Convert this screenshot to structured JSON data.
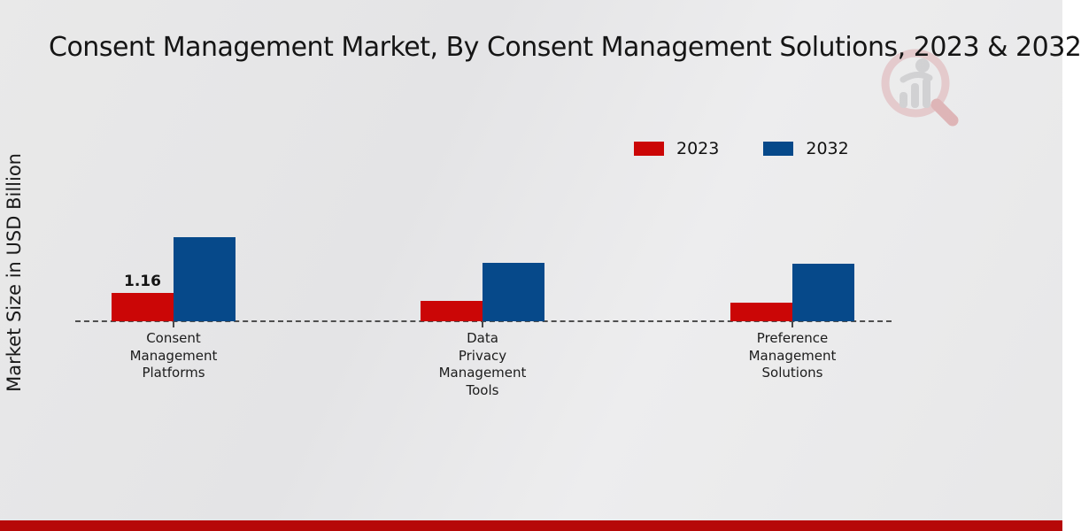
{
  "header": {
    "title": "Consent Management Market, By Consent Management Solutions, 2023 & 2032"
  },
  "watermark": {
    "icon": "magnifier-bar-chart-logo",
    "ring_color": "#dfb0b3",
    "bars_color": "#bdbdbf",
    "handle_color": "#d5898c"
  },
  "chart_data": {
    "type": "bar",
    "title": "Consent Management Market, By Consent Management Solutions, 2023 & 2032",
    "ylabel": "Market Size in USD Billion",
    "xlabel": "",
    "grid": false,
    "legend_position": "top-right",
    "baseline_style": "dashed",
    "ylim": [
      0,
      3.5
    ],
    "categories": [
      "Consent Management Platforms",
      "Data Privacy Management Tools",
      "Preference Management Solutions"
    ],
    "category_label_lines": [
      [
        "Consent",
        "Management",
        "Platforms"
      ],
      [
        "Data",
        "Privacy",
        "Management",
        "Tools"
      ],
      [
        "Preference",
        "Management",
        "Solutions"
      ]
    ],
    "series": [
      {
        "name": "2023",
        "color": "#cb0606",
        "values": [
          1.16,
          0.83,
          0.76
        ]
      },
      {
        "name": "2032",
        "color": "#06498a",
        "values": [
          3.44,
          2.39,
          2.35
        ]
      }
    ],
    "annotations": [
      {
        "series_index": 0,
        "category_index": 0,
        "text": "1.16"
      }
    ]
  },
  "footer": {
    "bar_color": "#b60808"
  }
}
